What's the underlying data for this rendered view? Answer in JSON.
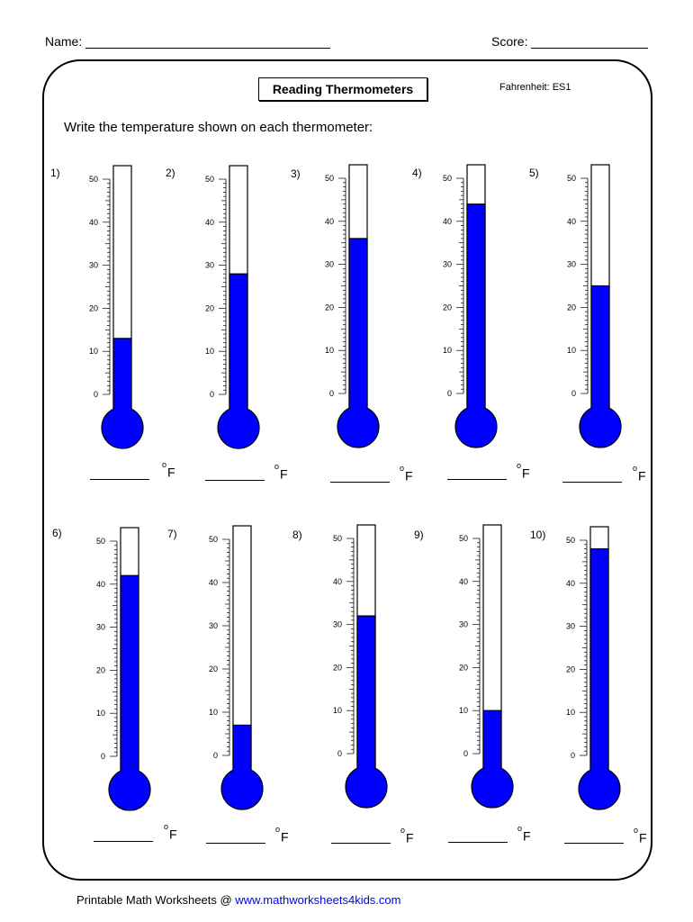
{
  "header": {
    "name_label": "Name:",
    "score_label": "Score:"
  },
  "worksheet": {
    "title": "Reading Thermometers",
    "code": "Fahrenheit: ES1",
    "instruction": "Write the temperature shown on each thermometer:",
    "unit": "F",
    "degree_symbol": "o",
    "scale_labels": [
      "50",
      "40",
      "30",
      "20",
      "10",
      "0"
    ],
    "fill_color": "#0000ff"
  },
  "questions": [
    {
      "number": "1)",
      "reading": 13
    },
    {
      "number": "2)",
      "reading": 28
    },
    {
      "number": "3)",
      "reading": 36
    },
    {
      "number": "4)",
      "reading": 44
    },
    {
      "number": "5)",
      "reading": 25
    },
    {
      "number": "6)",
      "reading": 42
    },
    {
      "number": "7)",
      "reading": 7
    },
    {
      "number": "8)",
      "reading": 32
    },
    {
      "number": "9)",
      "reading": 10
    },
    {
      "number": "10)",
      "reading": 48
    }
  ],
  "footer": {
    "text": "Printable Math Worksheets @ ",
    "link": "www.mathworksheets4kids.com"
  }
}
